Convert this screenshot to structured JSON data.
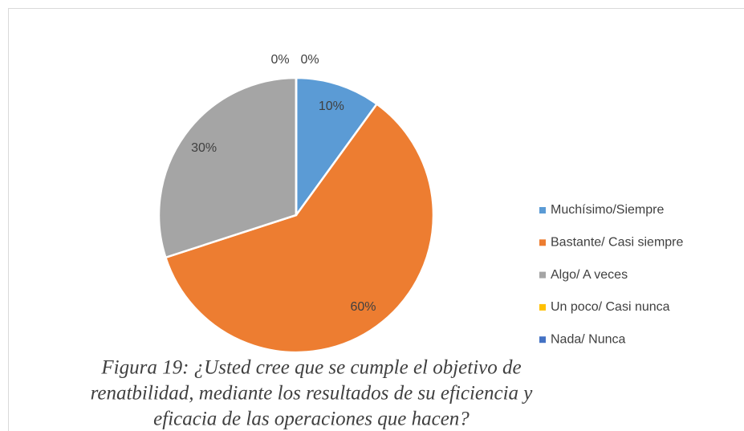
{
  "chart_data": {
    "type": "pie",
    "categories": [
      "Muchísimo/Siempre",
      "Bastante/ Casi siempre",
      "Algo/ A veces",
      "Un poco/ Casi nunca",
      "Nada/ Nunca"
    ],
    "values": [
      10,
      60,
      30,
      0,
      0
    ],
    "value_labels": [
      "10%",
      "60%",
      "30%",
      "0%",
      "0%"
    ],
    "colors": [
      "#5b9bd5",
      "#ed7d31",
      "#a5a5a5",
      "#ffc000",
      "#4472c4"
    ],
    "legend": "right",
    "caption": [
      "Figura 19: ¿Usted cree que se cumple el objetivo de",
      "renatbilidad, mediante los resultados de su eficiencia y",
      "eficacia de las operaciones que hacen?"
    ]
  }
}
